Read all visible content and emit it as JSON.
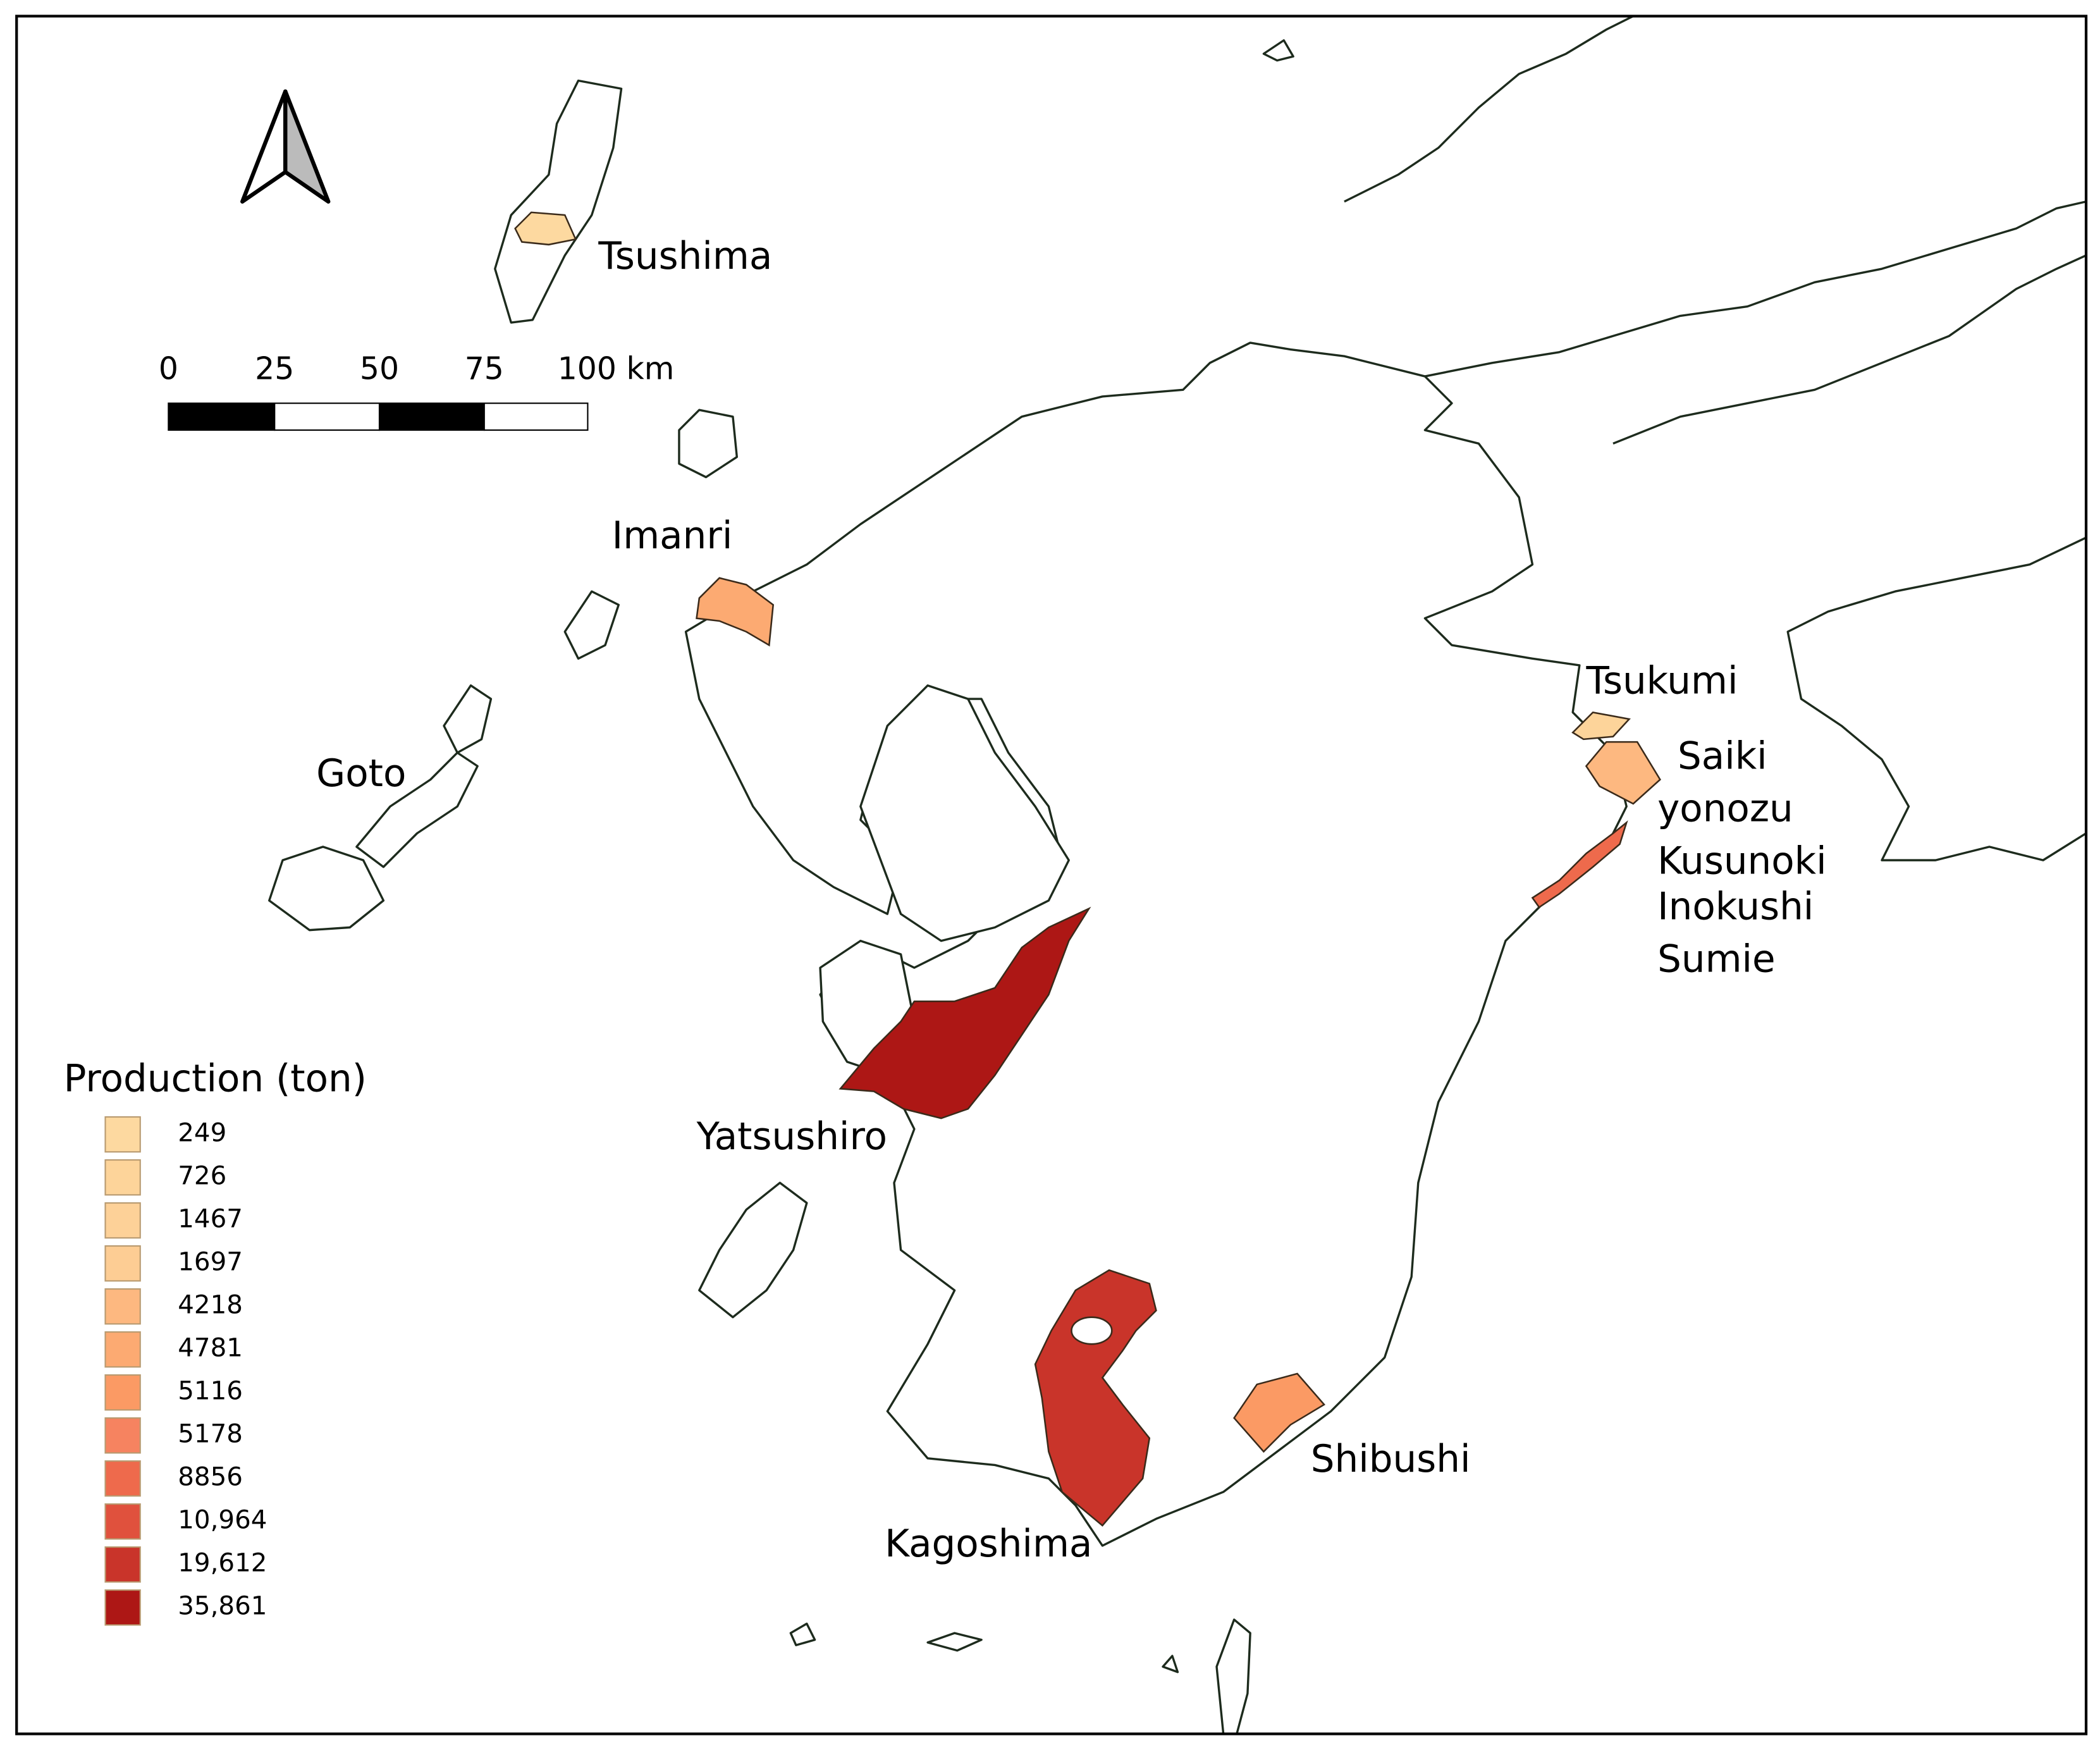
{
  "places": [
    "Tsushima",
    "Imanri",
    "Goto",
    "Yatsushiro",
    "Kagoshima",
    "Shibushi",
    "Tsukumi",
    "Saiki",
    "yonozu",
    "Kusunoki",
    "Inokushi",
    "Sumie"
  ],
  "scale_bar": {
    "labels": [
      "0",
      "25",
      "50",
      "75",
      "100 km"
    ]
  },
  "legend": {
    "title": "Production (ton)",
    "items": [
      {
        "label": "249",
        "color": "#fdd9a0"
      },
      {
        "label": "726",
        "color": "#fdd49a"
      },
      {
        "label": "1467",
        "color": "#fdd198"
      },
      {
        "label": "1697",
        "color": "#fdcd94"
      },
      {
        "label": "4218",
        "color": "#fdb880"
      },
      {
        "label": "4781",
        "color": "#fcaa72"
      },
      {
        "label": "5116",
        "color": "#fb9a64"
      },
      {
        "label": "5178",
        "color": "#f68360"
      },
      {
        "label": "8856",
        "color": "#ee6a4c"
      },
      {
        "label": "10,964",
        "color": "#e0513d"
      },
      {
        "label": "19,612",
        "color": "#c9342a"
      },
      {
        "label": "35,861",
        "color": "#ad1715"
      }
    ]
  }
}
